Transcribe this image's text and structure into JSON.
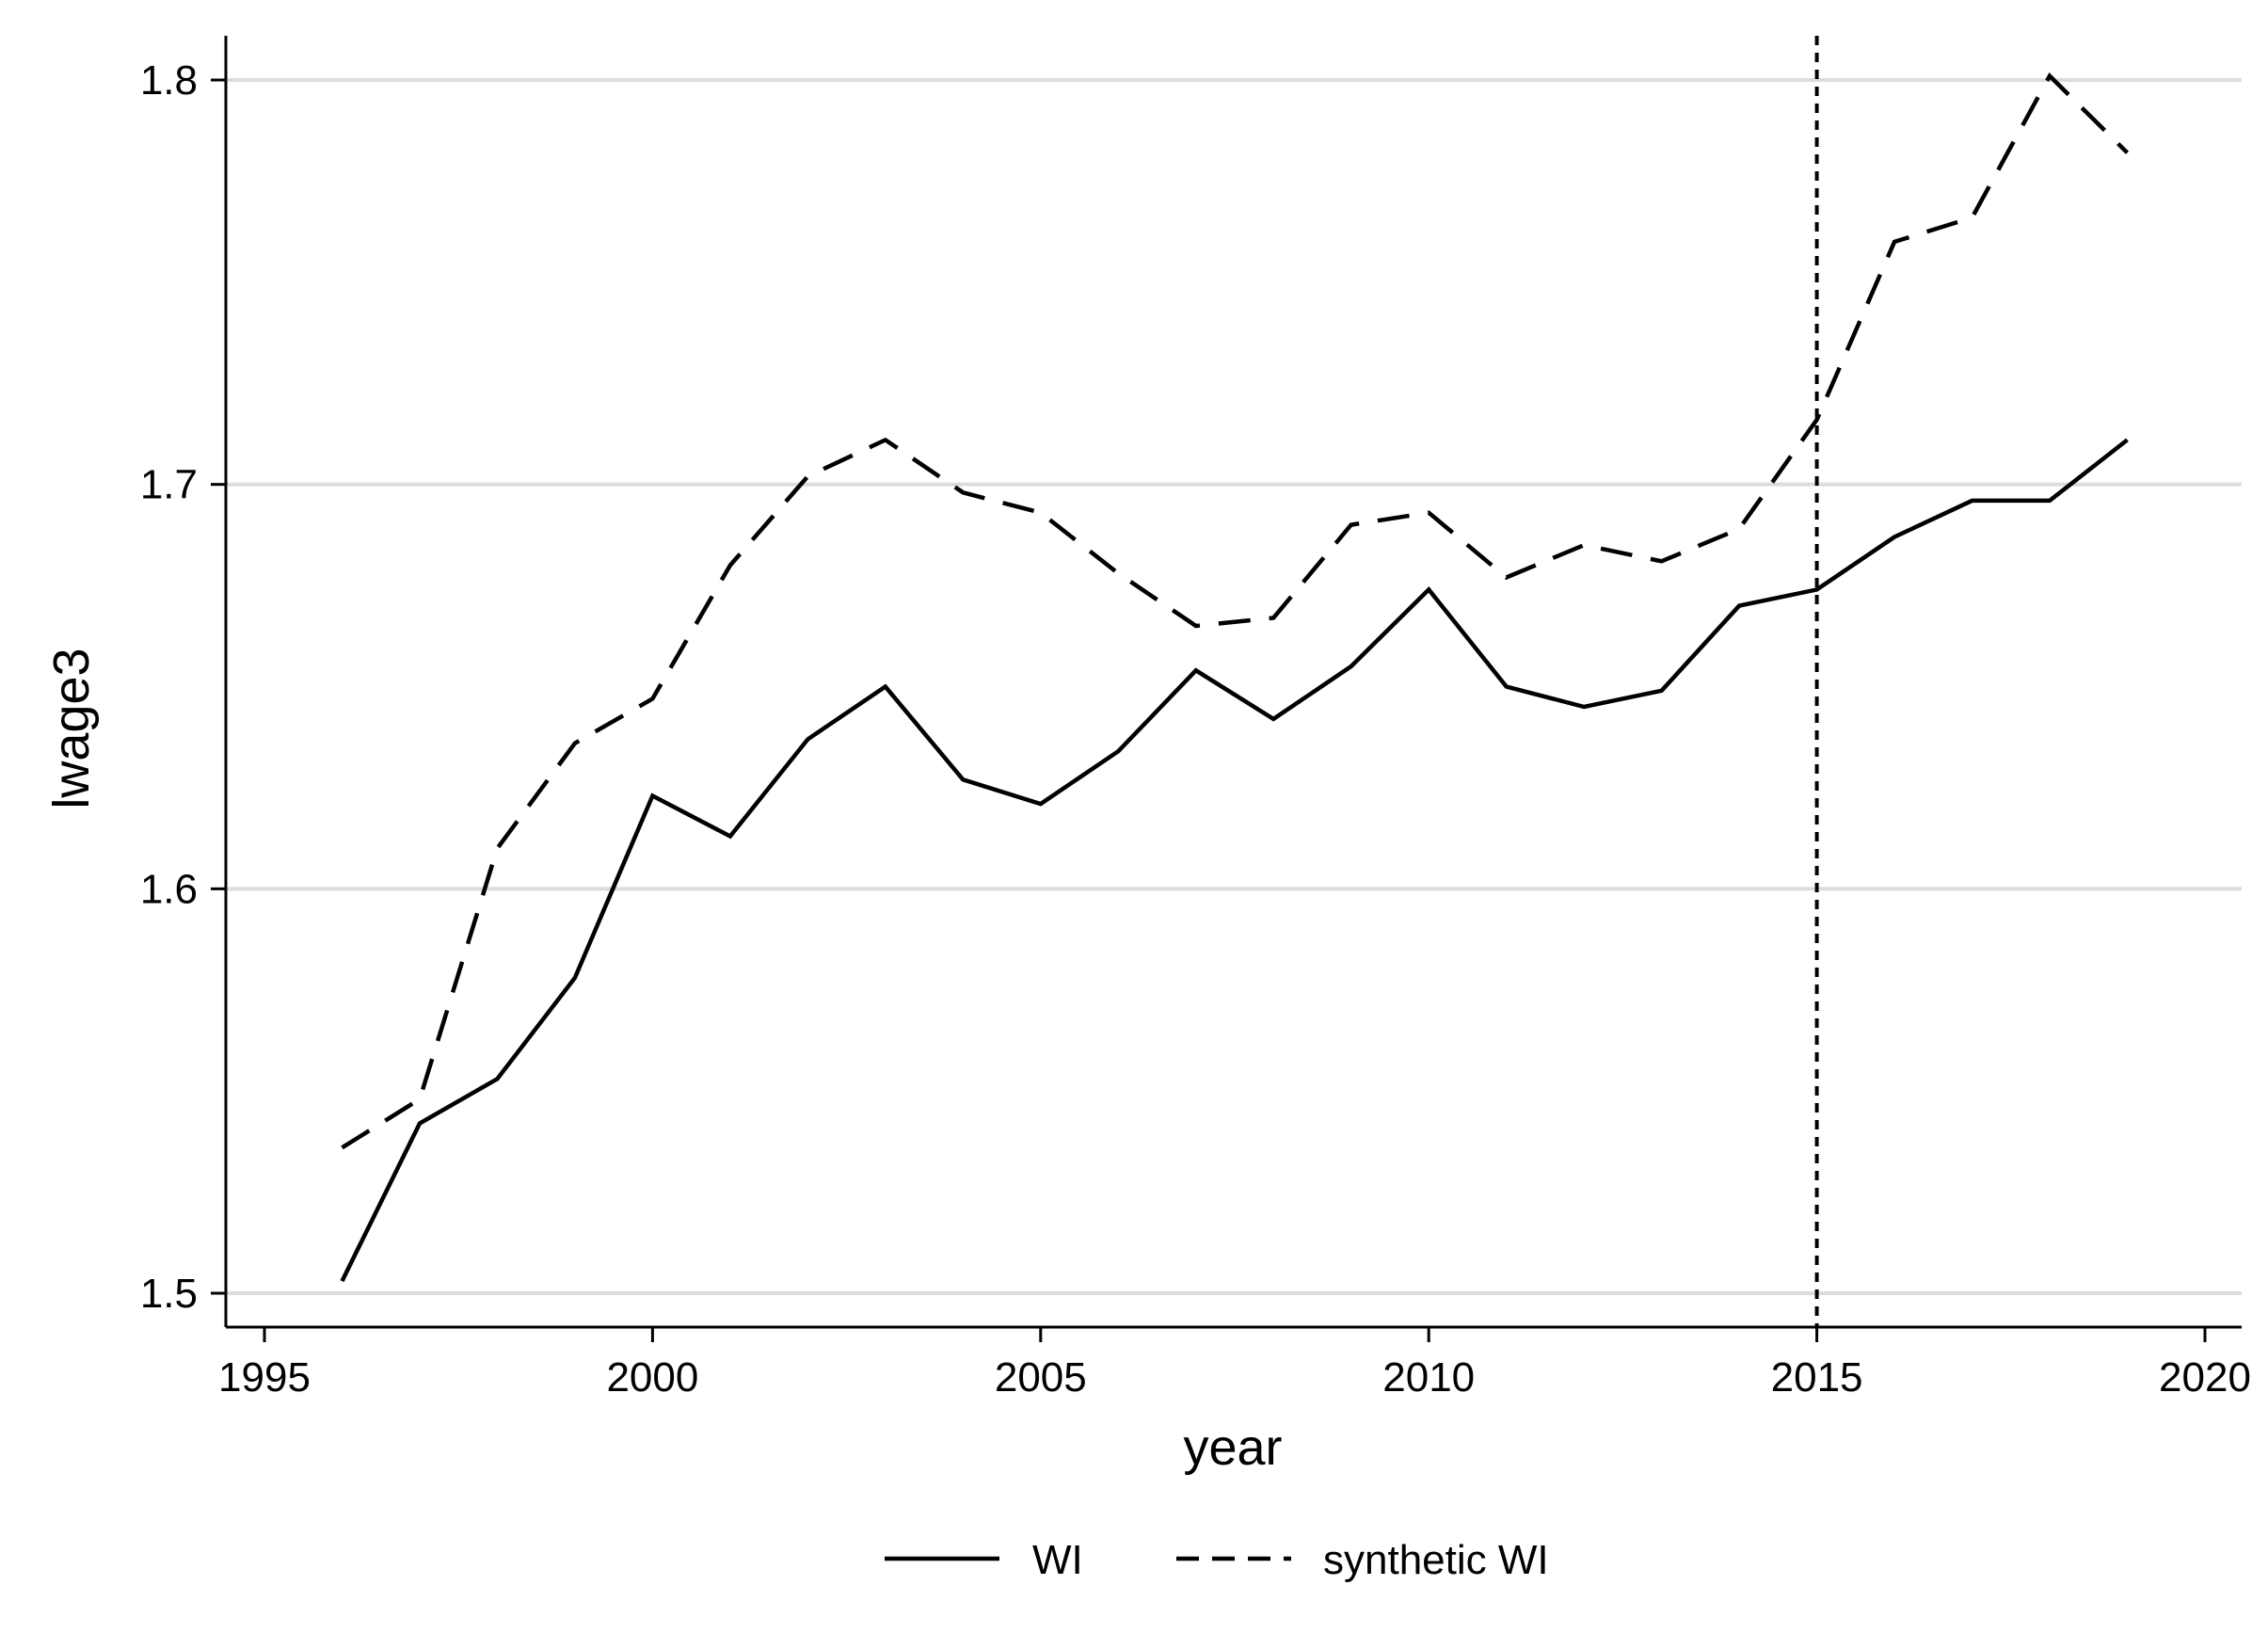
{
  "chart_data": {
    "type": "line",
    "title": "",
    "xlabel": "year",
    "ylabel": "lwage3",
    "xlim": [
      1995,
      2020
    ],
    "ylim": [
      1.5,
      1.8
    ],
    "x_ticks": [
      "1995",
      "2000",
      "2005",
      "2010",
      "2015",
      "2020"
    ],
    "y_ticks": [
      "1.5",
      "1.6",
      "1.7",
      "1.8"
    ],
    "grid": "horizontal",
    "legend_position": "bottom",
    "reference_line": {
      "x": 2015,
      "style": "dotted"
    },
    "x": [
      1996,
      1997,
      1998,
      1999,
      2000,
      2001,
      2002,
      2003,
      2004,
      2005,
      2006,
      2007,
      2008,
      2009,
      2010,
      2011,
      2012,
      2013,
      2014,
      2015,
      2016,
      2017,
      2018,
      2019
    ],
    "series": [
      {
        "name": "WI",
        "style": "solid",
        "values": [
          1.503,
          1.542,
          1.553,
          1.578,
          1.623,
          1.613,
          1.637,
          1.65,
          1.627,
          1.621,
          1.634,
          1.654,
          1.642,
          1.655,
          1.674,
          1.65,
          1.645,
          1.649,
          1.67,
          1.674,
          1.687,
          1.696,
          1.696,
          1.711
        ]
      },
      {
        "name": "synthetic WI",
        "style": "dashed",
        "values": [
          1.536,
          1.548,
          1.61,
          1.636,
          1.647,
          1.68,
          1.702,
          1.711,
          1.698,
          1.693,
          1.678,
          1.665,
          1.667,
          1.69,
          1.693,
          1.677,
          1.685,
          1.681,
          1.689,
          1.716,
          1.76,
          1.766,
          1.801,
          1.782
        ]
      }
    ]
  }
}
